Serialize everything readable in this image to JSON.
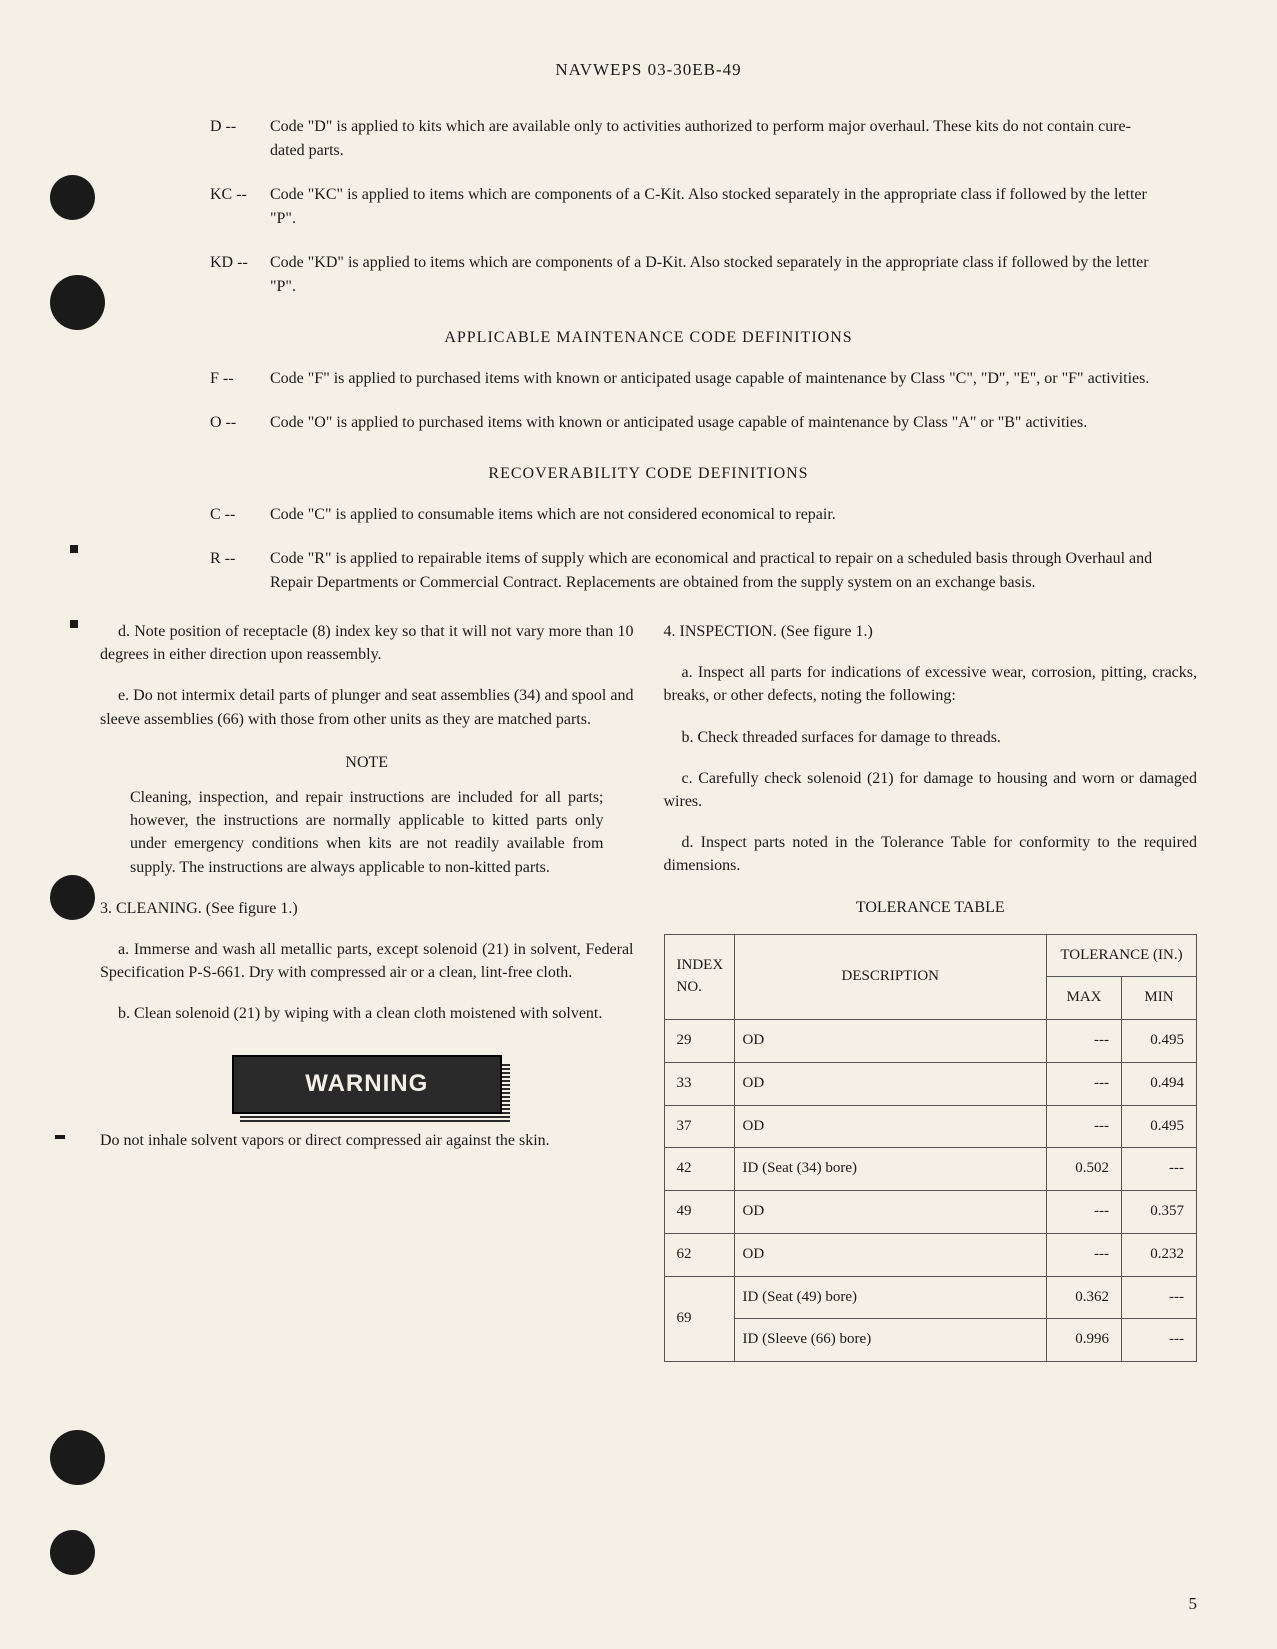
{
  "header": {
    "title": "NAVWEPS 03-30EB-49"
  },
  "sourceCodes": [
    {
      "label": "D -- ",
      "text": "Code \"D\" is applied to kits which are available only to activities authorized to perform major overhaul.  These kits do not contain cure-dated parts."
    },
    {
      "label": "KC -- ",
      "text": "Code \"KC\" is applied to items which are components of a C-Kit.  Also stocked separately in the appropriate class if followed by the letter \"P\"."
    },
    {
      "label": "KD -- ",
      "text": "Code \"KD\" is applied to items which are components of a D-Kit.  Also stocked separately in the appropriate class if followed by the letter \"P\"."
    }
  ],
  "maintenanceHeading": "APPLICABLE MAINTENANCE CODE DEFINITIONS",
  "maintenanceCodes": [
    {
      "label": "F -- ",
      "text": "Code \"F\" is applied to purchased items with known or anticipated usage capable of maintenance by Class \"C\", \"D\", \"E\", or \"F\" activities."
    },
    {
      "label": "O -- ",
      "text": "Code \"O\" is applied to purchased items with known or anticipated usage capable of maintenance by Class \"A\" or \"B\" activities."
    }
  ],
  "recoverabilityHeading": "RECOVERABILITY CODE DEFINITIONS",
  "recoverabilityCodes": [
    {
      "label": "C -- ",
      "text": "Code \"C\" is applied to consumable items which are not considered economical to repair."
    },
    {
      "label": "R -- ",
      "text": "Code \"R\" is applied to repairable items of supply which are economical and practical to repair on a scheduled basis through Overhaul and Repair Departments or Commercial Contract.  Replacements are obtained from the supply system on an exchange basis."
    }
  ],
  "leftColumn": {
    "paraD": "d.  Note position of receptacle (8) index key so that it will not vary more than 10 degrees in either direction upon reassembly.",
    "paraE": "e.  Do not intermix detail parts of plunger and seat assemblies (34) and spool and sleeve assemblies (66) with those from other units as they are matched parts.",
    "noteLabel": "NOTE",
    "noteText": "Cleaning, inspection, and repair instructions are included for all parts; however, the instructions are normally applicable to kitted parts only under emergency conditions when kits are not readily available from supply.  The instructions are always applicable to non-kitted parts.",
    "cleaningHeading": "3.  CLEANING.  (See figure 1.)",
    "paraA": "a.  Immerse and wash all metallic parts, except solenoid (21) in solvent, Federal Specification P-S-661.  Dry with compressed air or a clean, lint-free cloth.",
    "paraB": "b.  Clean solenoid (21) by wiping with a clean cloth moistened with solvent.",
    "warningLabel": "WARNING",
    "warningText": "Do not inhale solvent vapors or direct compressed air against the skin."
  },
  "rightColumn": {
    "inspectionHeading": "4.  INSPECTION.  (See figure 1.)",
    "paraA": "a.  Inspect all parts for indications of excessive wear, corrosion, pitting, cracks, breaks, or other defects, noting the following:",
    "paraB": "b.  Check threaded surfaces for damage to threads.",
    "paraC": "c.  Carefully check solenoid (21) for damage to housing and worn or damaged wires.",
    "paraD": "d.  Inspect parts noted in the Tolerance Table for conformity to the required dimensions.",
    "tableHeading": "TOLERANCE TABLE"
  },
  "toleranceTable": {
    "headers": {
      "index": "INDEX NO.",
      "description": "DESCRIPTION",
      "tolerance": "TOLERANCE (IN.)",
      "max": "MAX",
      "min": "MIN"
    },
    "rows": [
      {
        "index": "29",
        "desc": "OD",
        "max": "---",
        "min": "0.495"
      },
      {
        "index": "33",
        "desc": "OD",
        "max": "---",
        "min": "0.494"
      },
      {
        "index": "37",
        "desc": "OD",
        "max": "---",
        "min": "0.495"
      },
      {
        "index": "42",
        "desc": "ID (Seat (34) bore)",
        "max": "0.502",
        "min": "---"
      },
      {
        "index": "49",
        "desc": "OD",
        "max": "---",
        "min": "0.357"
      },
      {
        "index": "62",
        "desc": "OD",
        "max": "---",
        "min": "0.232"
      },
      {
        "index": "69",
        "desc": "ID (Seat (49) bore)",
        "max": "0.362",
        "min": "---",
        "rowspan": true
      },
      {
        "index": "",
        "desc": "ID (Sleeve (66) bore)",
        "max": "0.996",
        "min": "---"
      }
    ]
  },
  "pageNumber": "5"
}
